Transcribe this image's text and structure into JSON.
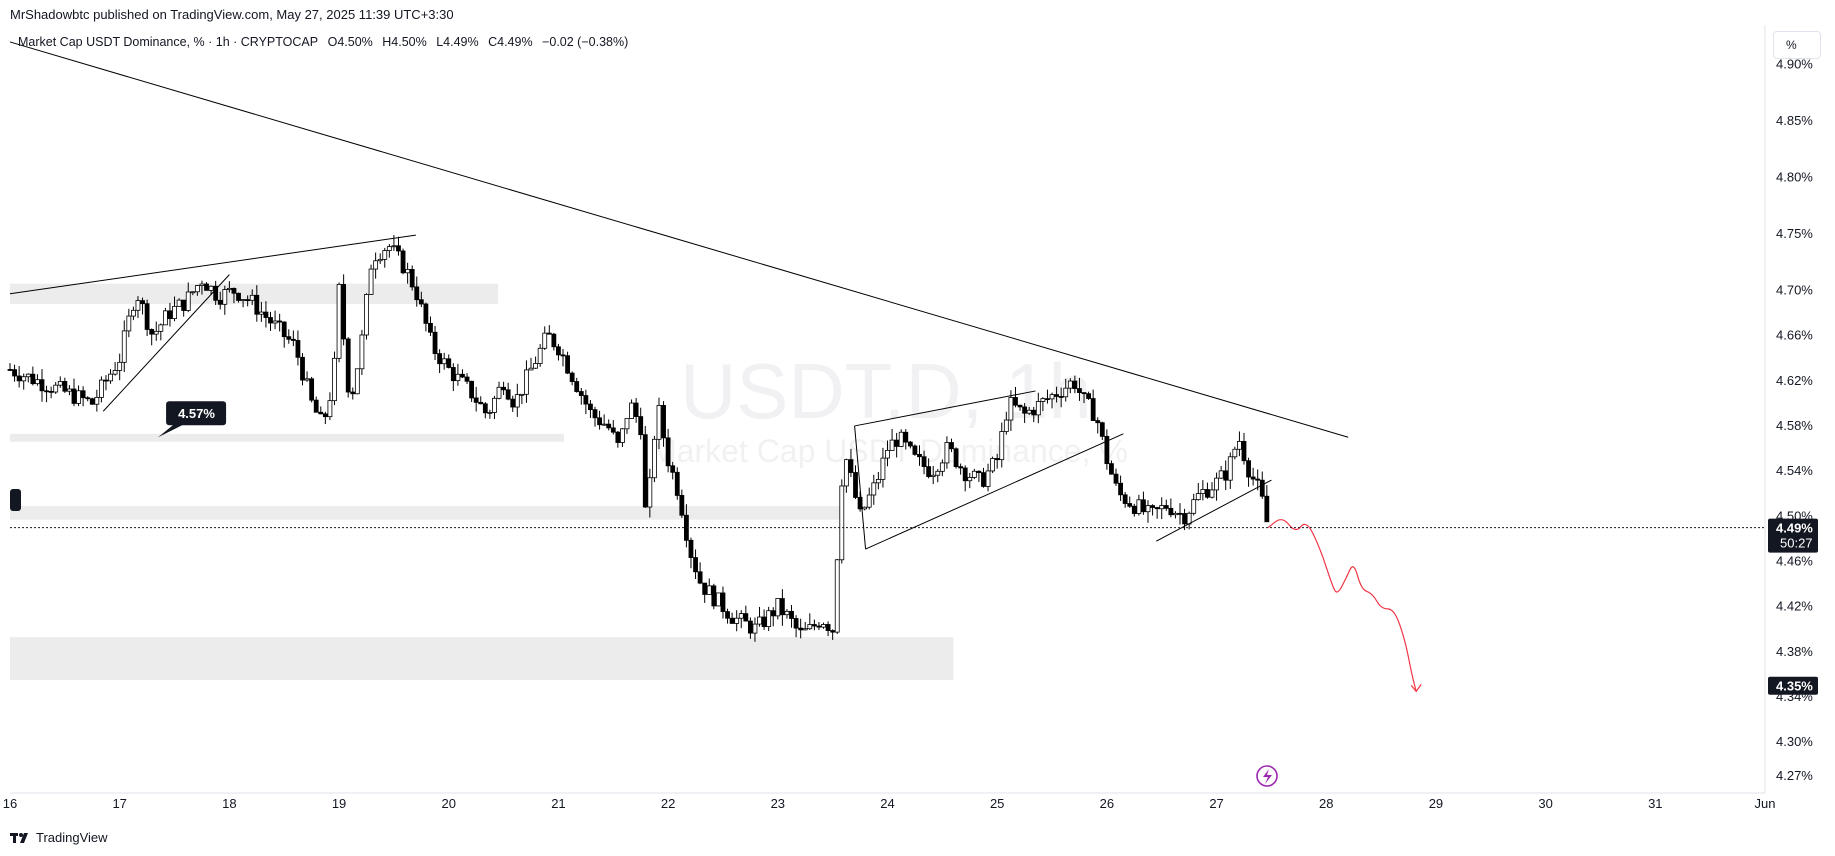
{
  "header": {
    "published": "MrShadowbtc published on TradingView.com, May 27, 2025 11:39 UTC+3:30"
  },
  "legend": {
    "symbol": "Market Cap USDT Dominance, % · 1h · CRYPTOCAP",
    "open": "O4.50%",
    "high": "H4.50%",
    "low": "L4.49%",
    "close": "C4.49%",
    "change": "−0.02 (−0.38%)"
  },
  "toolbar": {
    "percent_label": "%"
  },
  "watermark": {
    "ticker": "USDT.D, 1h",
    "name": "Market Cap USDT Dominance, %"
  },
  "footer": {
    "brand": "TradingView"
  },
  "colors": {
    "up": "#ffffff",
    "down": "#000000",
    "wick": "#000000",
    "zone": "#ececec",
    "projection": "#f23645",
    "trend": "#000000",
    "bolt": "#9c27b0"
  },
  "chart_data": {
    "type": "candlestick",
    "title": "Market Cap USDT Dominance, %",
    "timeframe": "1h",
    "ylim": [
      4.255,
      4.935
    ],
    "xlim": [
      16.0,
      32.0
    ],
    "y_ticks": [
      "4.90%",
      "4.85%",
      "4.80%",
      "4.75%",
      "4.70%",
      "4.66%",
      "4.62%",
      "4.58%",
      "4.54%",
      "4.50%",
      "4.46%",
      "4.42%",
      "4.38%",
      "4.34%",
      "4.30%",
      "4.27%"
    ],
    "x_ticks": [
      "16",
      "17",
      "18",
      "19",
      "20",
      "21",
      "22",
      "23",
      "24",
      "25",
      "26",
      "27",
      "28",
      "29",
      "30",
      "31",
      "Jun"
    ],
    "x_tick_values": [
      16,
      17,
      18,
      19,
      20,
      21,
      22,
      23,
      24,
      25,
      26,
      27,
      28,
      29,
      30,
      31,
      32
    ],
    "price_label": {
      "value": "4.49%",
      "countdown": "50:27"
    },
    "target_label": "4.35%",
    "callout": {
      "text": "4.57%",
      "x": 17.35,
      "y": 4.57
    },
    "price_path": [
      [
        16.0,
        4.63
      ],
      [
        16.25,
        4.62
      ],
      [
        16.5,
        4.61
      ],
      [
        16.75,
        4.6
      ],
      [
        17.0,
        4.64
      ],
      [
        17.15,
        4.7
      ],
      [
        17.3,
        4.66
      ],
      [
        17.45,
        4.68
      ],
      [
        17.6,
        4.69
      ],
      [
        17.75,
        4.71
      ],
      [
        17.9,
        4.695
      ],
      [
        18.05,
        4.7
      ],
      [
        18.2,
        4.69
      ],
      [
        18.4,
        4.67
      ],
      [
        18.6,
        4.65
      ],
      [
        18.75,
        4.6
      ],
      [
        18.85,
        4.58
      ],
      [
        18.95,
        4.62
      ],
      [
        19.0,
        4.7
      ],
      [
        19.1,
        4.6
      ],
      [
        19.2,
        4.65
      ],
      [
        19.3,
        4.73
      ],
      [
        19.45,
        4.74
      ],
      [
        19.6,
        4.72
      ],
      [
        19.7,
        4.7
      ],
      [
        19.85,
        4.65
      ],
      [
        20.0,
        4.63
      ],
      [
        20.1,
        4.62
      ],
      [
        20.2,
        4.61
      ],
      [
        20.35,
        4.59
      ],
      [
        20.5,
        4.62
      ],
      [
        20.6,
        4.6
      ],
      [
        20.75,
        4.63
      ],
      [
        20.9,
        4.66
      ],
      [
        21.0,
        4.65
      ],
      [
        21.15,
        4.62
      ],
      [
        21.3,
        4.59
      ],
      [
        21.45,
        4.58
      ],
      [
        21.55,
        4.56
      ],
      [
        21.65,
        4.6
      ],
      [
        21.75,
        4.58
      ],
      [
        21.8,
        4.49
      ],
      [
        21.9,
        4.6
      ],
      [
        22.0,
        4.55
      ],
      [
        22.1,
        4.52
      ],
      [
        22.2,
        4.47
      ],
      [
        22.3,
        4.44
      ],
      [
        22.4,
        4.43
      ],
      [
        22.6,
        4.41
      ],
      [
        22.8,
        4.4
      ],
      [
        23.0,
        4.42
      ],
      [
        23.1,
        4.41
      ],
      [
        23.2,
        4.395
      ],
      [
        23.3,
        4.4
      ],
      [
        23.4,
        4.41
      ],
      [
        23.5,
        4.4
      ],
      [
        23.6,
        4.56
      ],
      [
        23.75,
        4.5
      ],
      [
        23.9,
        4.53
      ],
      [
        24.0,
        4.56
      ],
      [
        24.1,
        4.57
      ],
      [
        24.25,
        4.55
      ],
      [
        24.4,
        4.54
      ],
      [
        24.55,
        4.56
      ],
      [
        24.7,
        4.54
      ],
      [
        24.85,
        4.53
      ],
      [
        25.0,
        4.55
      ],
      [
        25.1,
        4.6
      ],
      [
        25.25,
        4.59
      ],
      [
        25.4,
        4.6
      ],
      [
        25.55,
        4.61
      ],
      [
        25.7,
        4.62
      ],
      [
        25.8,
        4.6
      ],
      [
        25.9,
        4.59
      ],
      [
        26.0,
        4.55
      ],
      [
        26.1,
        4.52
      ],
      [
        26.25,
        4.51
      ],
      [
        26.4,
        4.5
      ],
      [
        26.55,
        4.51
      ],
      [
        26.7,
        4.5
      ],
      [
        26.85,
        4.52
      ],
      [
        27.0,
        4.53
      ],
      [
        27.1,
        4.54
      ],
      [
        27.2,
        4.57
      ],
      [
        27.3,
        4.54
      ],
      [
        27.4,
        4.52
      ],
      [
        27.47,
        4.49
      ]
    ],
    "zones": [
      {
        "x0": 16.0,
        "x1": 20.45,
        "y0": 4.688,
        "y1": 4.706
      },
      {
        "x0": 16.0,
        "x1": 21.05,
        "y0": 4.566,
        "y1": 4.573
      },
      {
        "x0": 16.0,
        "x1": 23.6,
        "y0": 4.497,
        "y1": 4.509
      },
      {
        "x0": 16.0,
        "x1": 24.6,
        "y0": 4.355,
        "y1": 4.393
      }
    ],
    "trendlines": [
      {
        "name": "main-downtrend",
        "points": [
          [
            16.0,
            4.92
          ],
          [
            28.2,
            4.57
          ]
        ]
      },
      {
        "name": "upper-wedge-left",
        "points": [
          [
            16.0,
            4.697
          ],
          [
            19.7,
            4.749
          ]
        ]
      },
      {
        "name": "lower-wedge-left",
        "points": [
          [
            16.85,
            4.593
          ],
          [
            18.0,
            4.714
          ]
        ]
      },
      {
        "name": "channel-top",
        "points": [
          [
            23.7,
            4.58
          ],
          [
            25.35,
            4.611
          ]
        ]
      },
      {
        "name": "channel-bottom",
        "points": [
          [
            23.8,
            4.471
          ],
          [
            26.15,
            4.573
          ]
        ]
      },
      {
        "name": "channel-left",
        "points": [
          [
            23.7,
            4.58
          ],
          [
            23.8,
            4.471
          ]
        ]
      },
      {
        "name": "flag-bottom",
        "points": [
          [
            26.45,
            4.478
          ],
          [
            27.5,
            4.532
          ]
        ]
      }
    ],
    "projection": [
      [
        27.47,
        4.49
      ],
      [
        27.6,
        4.5
      ],
      [
        27.72,
        4.485
      ],
      [
        27.82,
        4.497
      ],
      [
        27.95,
        4.47
      ],
      [
        28.05,
        4.44
      ],
      [
        28.1,
        4.43
      ],
      [
        28.18,
        4.445
      ],
      [
        28.25,
        4.46
      ],
      [
        28.32,
        4.435
      ],
      [
        28.42,
        4.432
      ],
      [
        28.5,
        4.418
      ],
      [
        28.62,
        4.418
      ],
      [
        28.72,
        4.39
      ],
      [
        28.78,
        4.36
      ],
      [
        28.82,
        4.345
      ]
    ]
  }
}
